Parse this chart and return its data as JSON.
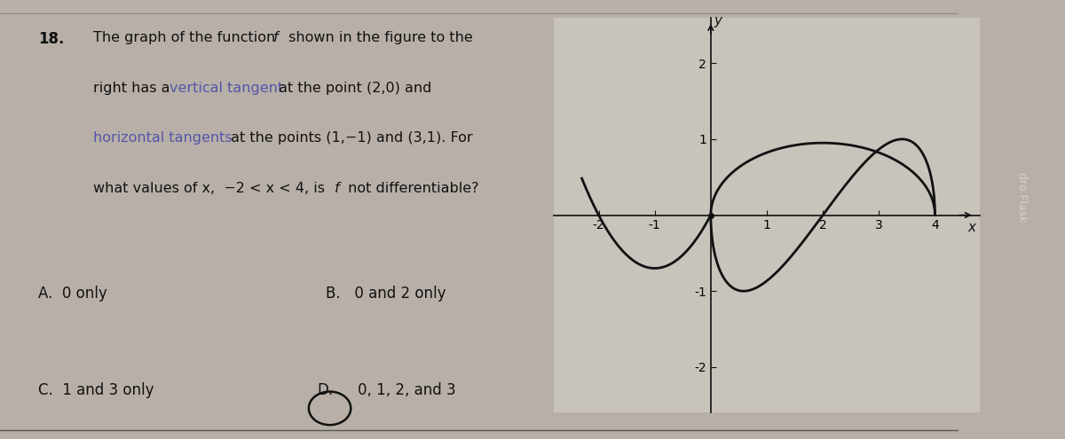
{
  "bg_color": "#b8b0a8",
  "paper_color": "#ccc8c0",
  "graph_bg": "#c8c4bc",
  "question_number": "18.",
  "answer_A": "A.  0 only",
  "answer_B": "B.   0 and 2 only",
  "answer_C": "C.  1 and 3 only",
  "answer_D": "0, 1, 2, and 3",
  "graph_xlim": [
    -2.8,
    4.8
  ],
  "graph_ylim": [
    -2.6,
    2.6
  ],
  "graph_xticks": [
    -2,
    -1,
    1,
    2,
    3,
    4
  ],
  "graph_yticks": [
    -2,
    -1,
    1,
    2
  ],
  "axis_color": "#111111",
  "curve_color": "#111111",
  "text_color": "#111111",
  "highlight_color": "#5555aa",
  "right_bar_color": "#7a1515",
  "fig_width": 12.0,
  "fig_height": 4.95
}
